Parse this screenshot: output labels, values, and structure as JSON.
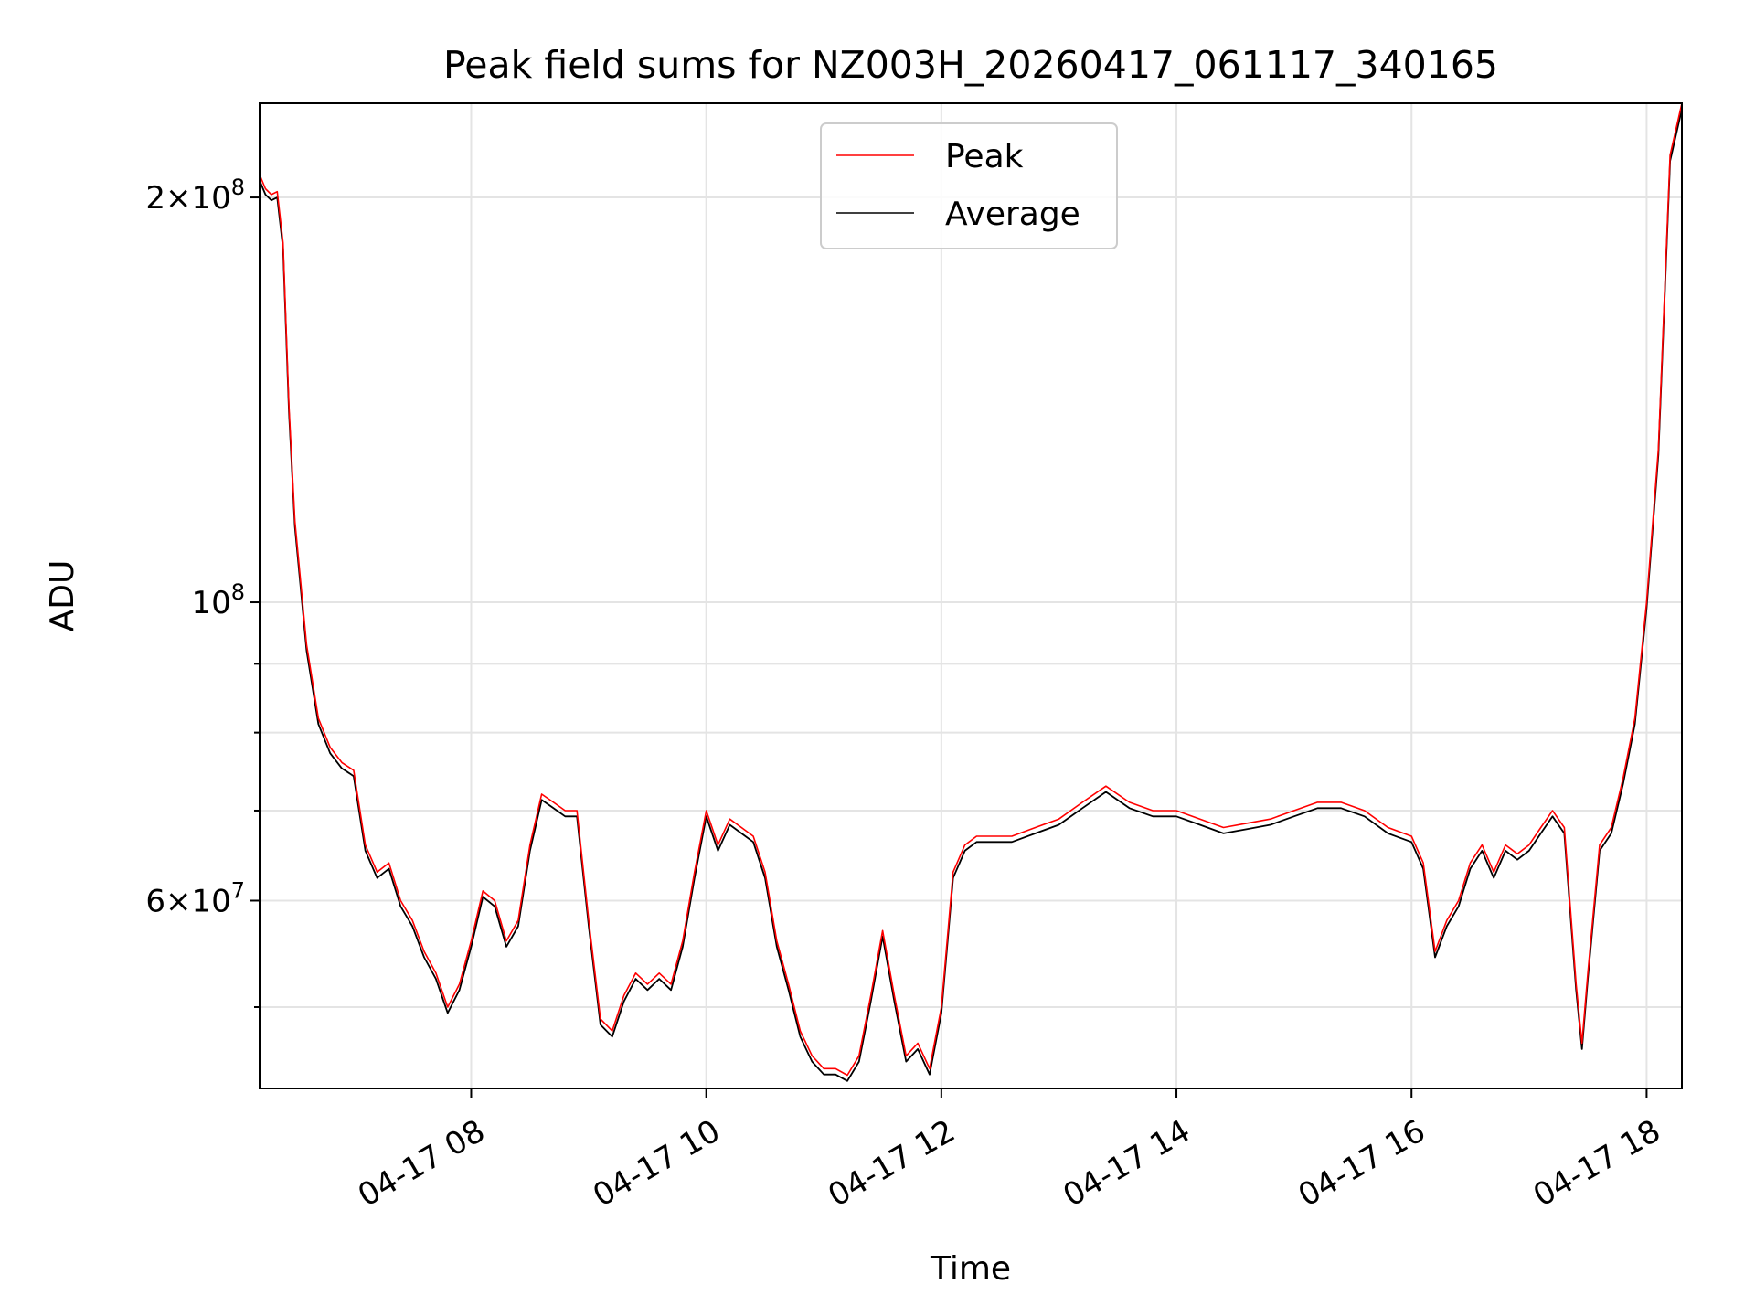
{
  "chart_data": {
    "type": "line",
    "title": "Peak field sums for NZ003H_20260417_061117_340165",
    "xlabel": "Time",
    "ylabel": "ADU",
    "yscale": "log",
    "xlim": [
      6.2,
      18.3
    ],
    "ylim": [
      43500000,
      235000000
    ],
    "grid": true,
    "legend_position": "upper center",
    "x_ticks": [
      {
        "value": 8,
        "label": "04-17 08"
      },
      {
        "value": 10,
        "label": "04-17 10"
      },
      {
        "value": 12,
        "label": "04-17 12"
      },
      {
        "value": 14,
        "label": "04-17 14"
      },
      {
        "value": 16,
        "label": "04-17 16"
      },
      {
        "value": 18,
        "label": "04-17 18"
      }
    ],
    "y_major_ticks": [
      {
        "value": 200000000,
        "base": "2×10",
        "exp": "8"
      },
      {
        "value": 100000000,
        "base": "10",
        "exp": "8"
      },
      {
        "value": 60000000,
        "base": "6×10",
        "exp": "7"
      }
    ],
    "y_minor_ticks": [
      50000000,
      70000000,
      80000000,
      90000000
    ],
    "series": [
      {
        "name": "Peak",
        "color": "#ff0000",
        "peak_offset": 1.01,
        "x": [
          6.2,
          6.25,
          6.3,
          6.35,
          6.4,
          6.45,
          6.5,
          6.6,
          6.7,
          6.8,
          6.9,
          7.0,
          7.1,
          7.2,
          7.3,
          7.4,
          7.5,
          7.6,
          7.7,
          7.8,
          7.9,
          8.0,
          8.1,
          8.2,
          8.3,
          8.4,
          8.5,
          8.6,
          8.7,
          8.8,
          8.9,
          9.0,
          9.1,
          9.2,
          9.3,
          9.4,
          9.5,
          9.6,
          9.7,
          9.8,
          9.9,
          10.0,
          10.1,
          10.2,
          10.3,
          10.4,
          10.5,
          10.6,
          10.7,
          10.8,
          10.9,
          11.0,
          11.1,
          11.2,
          11.3,
          11.4,
          11.5,
          11.6,
          11.7,
          11.8,
          11.9,
          12.0,
          12.1,
          12.2,
          12.3,
          12.4,
          12.6,
          12.8,
          13.0,
          13.2,
          13.4,
          13.6,
          13.8,
          14.0,
          14.2,
          14.4,
          14.6,
          14.8,
          15.0,
          15.2,
          15.4,
          15.6,
          15.8,
          16.0,
          16.1,
          16.2,
          16.3,
          16.4,
          16.5,
          16.6,
          16.7,
          16.8,
          16.9,
          17.0,
          17.1,
          17.2,
          17.3,
          17.4,
          17.45,
          17.5,
          17.6,
          17.7,
          17.8,
          17.9,
          18.0,
          18.1,
          18.2,
          18.3
        ],
        "y": [
          208000000,
          203000000,
          201000000,
          202000000,
          185000000,
          140000000,
          115000000,
          93000000,
          82000000,
          78000000,
          76000000,
          75000000,
          66000000,
          63000000,
          64000000,
          60000000,
          58000000,
          55000000,
          53000000,
          50000000,
          52000000,
          56000000,
          61000000,
          60000000,
          56000000,
          58000000,
          66000000,
          72000000,
          71000000,
          70000000,
          70000000,
          58000000,
          49000000,
          48000000,
          51000000,
          53000000,
          52000000,
          53000000,
          52000000,
          56000000,
          63000000,
          70000000,
          66000000,
          69000000,
          68000000,
          67000000,
          63000000,
          56000000,
          52000000,
          48000000,
          46000000,
          45000000,
          45000000,
          44500000,
          46000000,
          51000000,
          57000000,
          51000000,
          46000000,
          47000000,
          45000000,
          50000000,
          63000000,
          66000000,
          67000000,
          67000000,
          67000000,
          68000000,
          69000000,
          71000000,
          73000000,
          71000000,
          70000000,
          70000000,
          69000000,
          68000000,
          68500000,
          69000000,
          70000000,
          71000000,
          71000000,
          70000000,
          68000000,
          67000000,
          64000000,
          55000000,
          58000000,
          60000000,
          64000000,
          66000000,
          63000000,
          66000000,
          65000000,
          66000000,
          68000000,
          70000000,
          68000000,
          52000000,
          47000000,
          53000000,
          66000000,
          68000000,
          74000000,
          82000000,
          100000000,
          130000000,
          215000000,
          235000000
        ]
      },
      {
        "name": "Average",
        "color": "#000000",
        "peak_offset": 1.0
      }
    ]
  }
}
